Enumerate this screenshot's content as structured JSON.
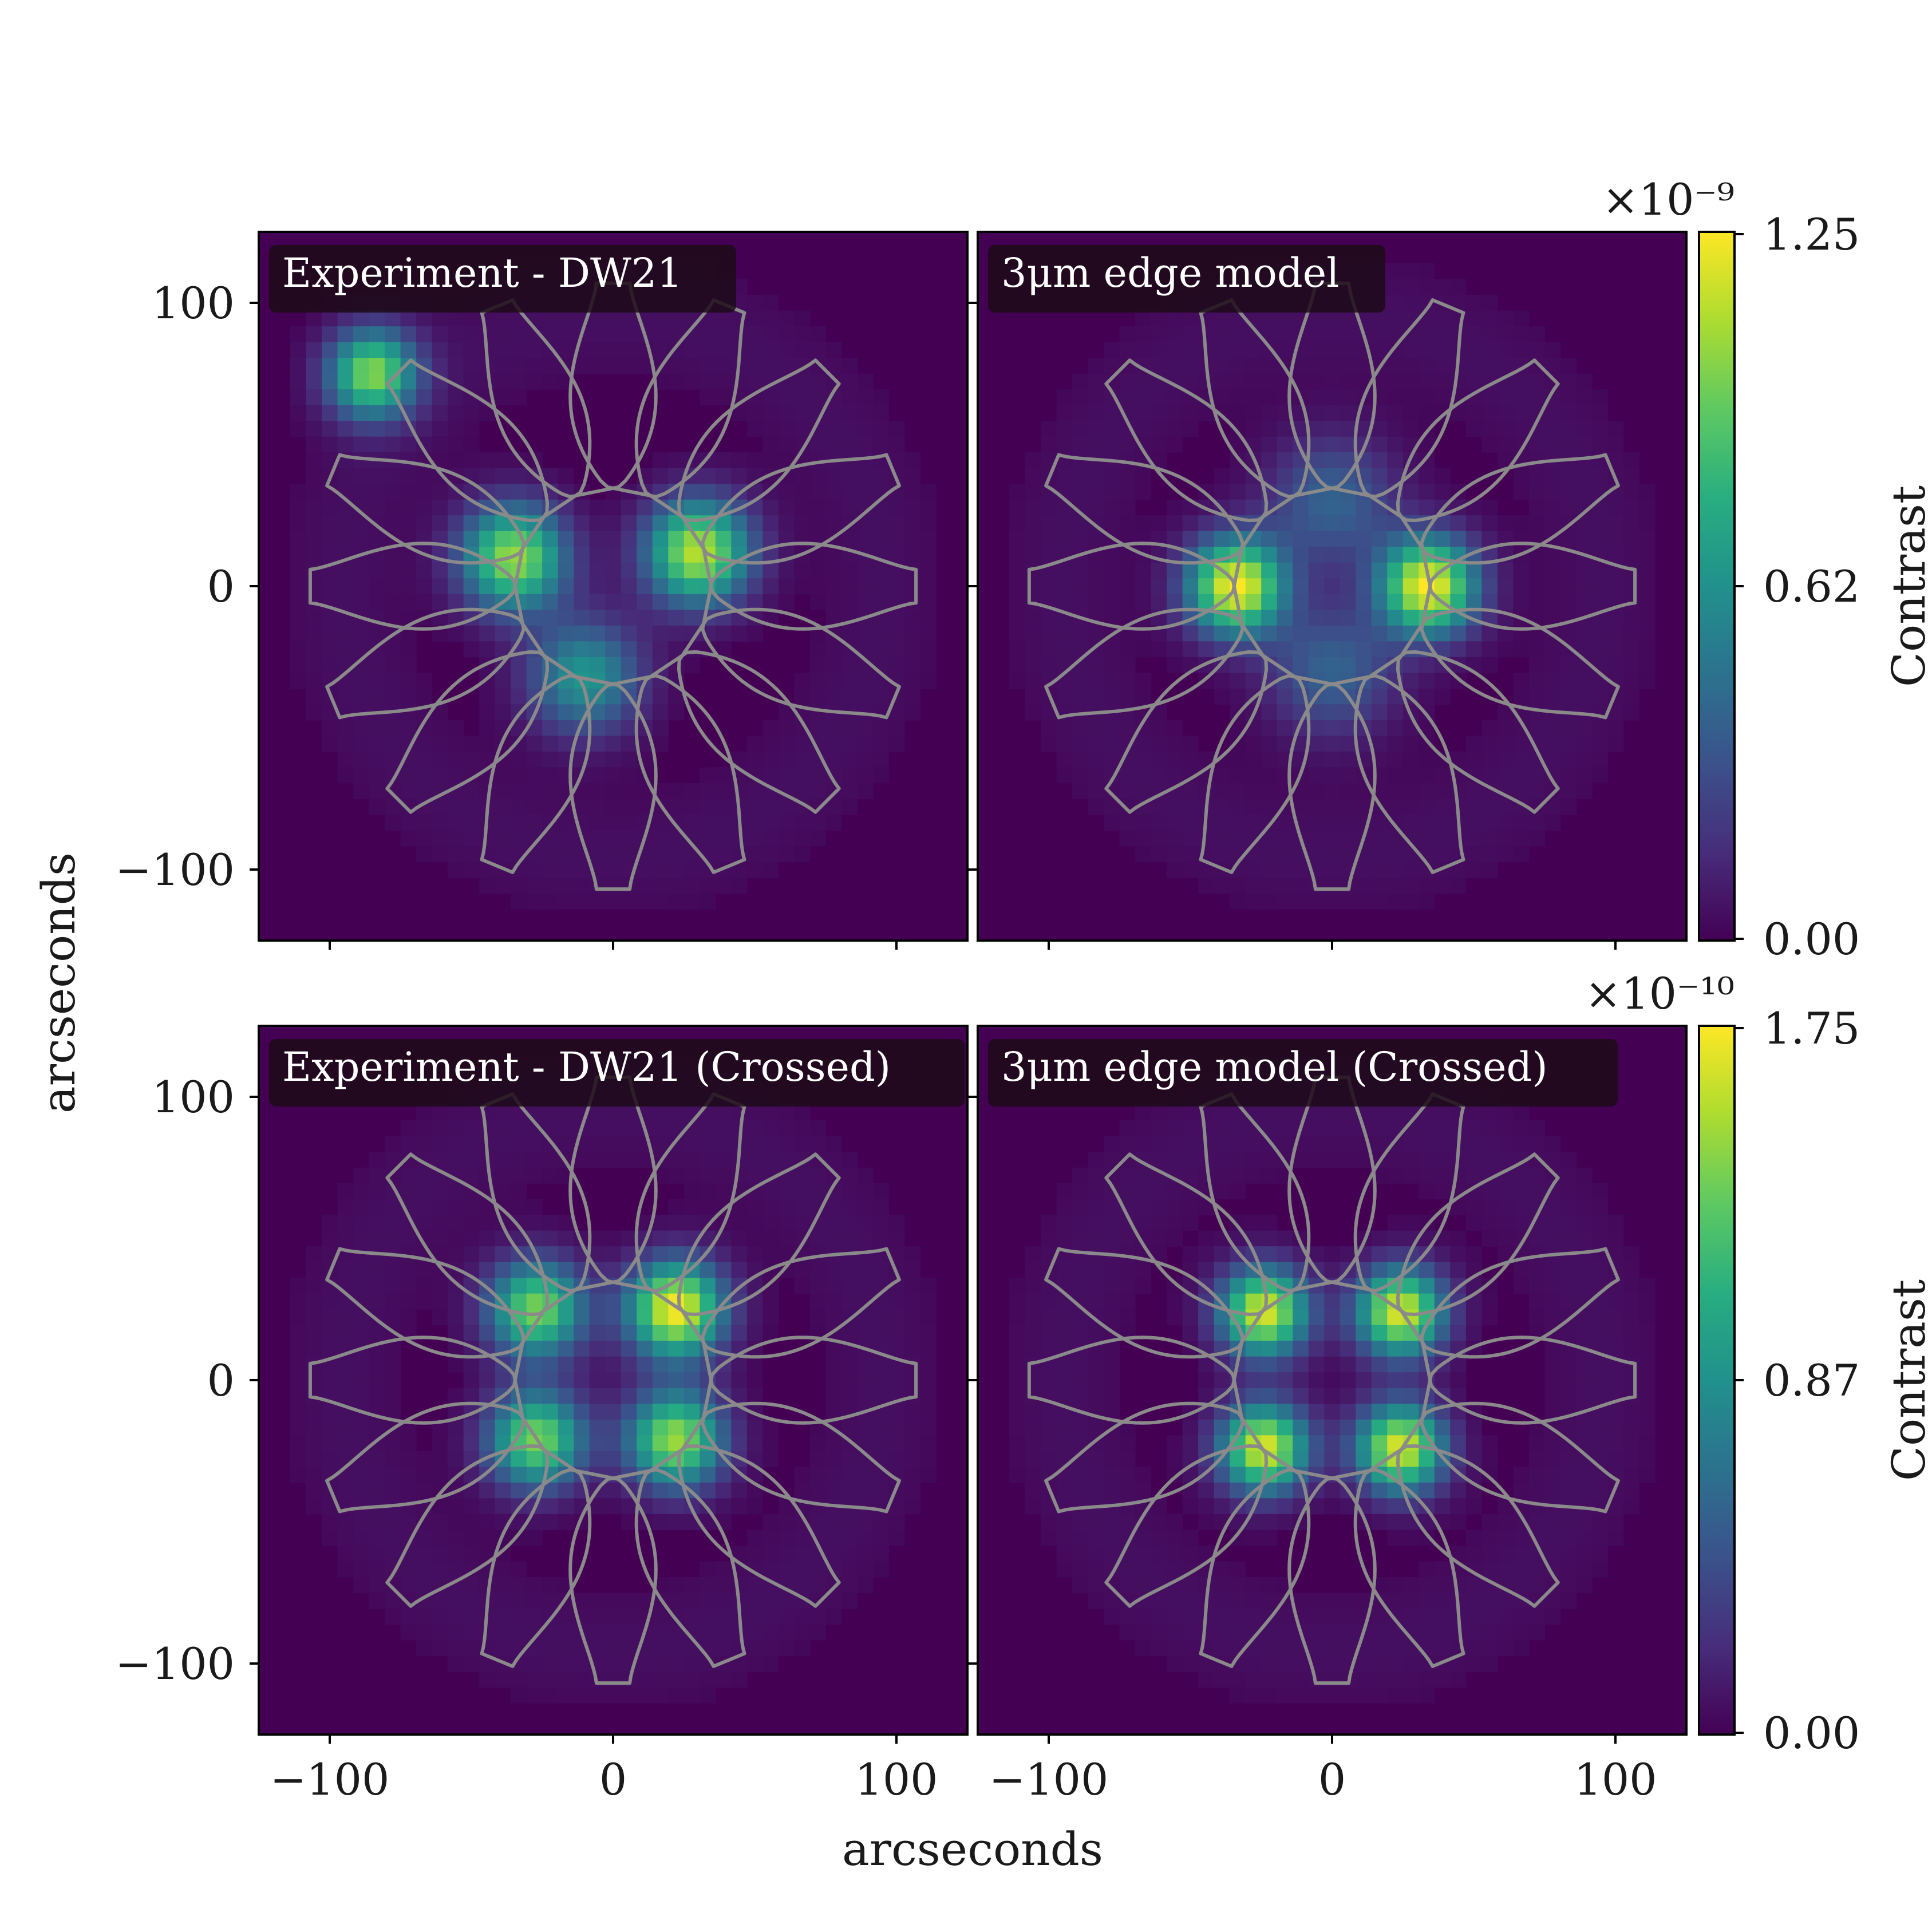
{
  "chart_data": [
    {
      "type": "heatmap",
      "title": "Experiment - DW21",
      "xlabel": "arcseconds",
      "ylabel": "arcseconds",
      "xlim": [
        -125,
        125
      ],
      "ylim": [
        -125,
        125
      ],
      "xticks": [
        "−100",
        "0",
        "100"
      ],
      "yticks": [
        "100",
        "0",
        "−100"
      ],
      "colorscale": "viridis",
      "spots": [
        {
          "x": -35,
          "y": 10,
          "value": 0.85,
          "sigma": 13
        },
        {
          "x": 30,
          "y": 12,
          "value": 0.9,
          "sigma": 13
        },
        {
          "x": -85,
          "y": 75,
          "value": 0.8,
          "sigma": 11
        },
        {
          "x": -10,
          "y": -32,
          "value": 0.52,
          "sigma": 14
        }
      ]
    },
    {
      "type": "heatmap",
      "title": "3μm edge model",
      "xlim": [
        -125,
        125
      ],
      "ylim": [
        -125,
        125
      ],
      "colorscale": "viridis",
      "colorbar": {
        "label": "Contrast",
        "multiplier": "×10⁻⁹",
        "ticks": [
          "1.25",
          "0.62",
          "0.00"
        ],
        "min": 0,
        "max": 1.25
      },
      "spots": [
        {
          "x": -34,
          "y": 0,
          "value": 1.0,
          "sigma": 12
        },
        {
          "x": 34,
          "y": 0,
          "value": 1.0,
          "sigma": 12
        },
        {
          "x": 0,
          "y": 30,
          "value": 0.32,
          "sigma": 16
        },
        {
          "x": 0,
          "y": -30,
          "value": 0.32,
          "sigma": 16
        }
      ]
    },
    {
      "type": "heatmap",
      "title": "Experiment - DW21 (Crossed)",
      "xlim": [
        -125,
        125
      ],
      "ylim": [
        -125,
        125
      ],
      "xticks": [
        "−100",
        "0",
        "100"
      ],
      "yticks": [
        "100",
        "0",
        "−100"
      ],
      "colorscale": "viridis",
      "spots": [
        {
          "x": -27,
          "y": 25,
          "value": 0.8,
          "sigma": 12
        },
        {
          "x": 22,
          "y": 25,
          "value": 1.0,
          "sigma": 12
        },
        {
          "x": -27,
          "y": -21,
          "value": 0.8,
          "sigma": 12
        },
        {
          "x": 22,
          "y": -21,
          "value": 0.85,
          "sigma": 12
        }
      ]
    },
    {
      "type": "heatmap",
      "title": "3μm edge model (Crossed)",
      "xlim": [
        -125,
        125
      ],
      "ylim": [
        -125,
        125
      ],
      "xticks": [
        "−100",
        "0",
        "100"
      ],
      "colorscale": "viridis",
      "colorbar": {
        "label": "Contrast",
        "multiplier": "×10⁻¹⁰",
        "ticks": [
          "1.75",
          "0.87",
          "0.00"
        ],
        "min": 0,
        "max": 1.75
      },
      "spots": [
        {
          "x": -24,
          "y": 24,
          "value": 0.95,
          "sigma": 11
        },
        {
          "x": 24,
          "y": 24,
          "value": 0.95,
          "sigma": 11
        },
        {
          "x": -24,
          "y": -24,
          "value": 0.95,
          "sigma": 11
        },
        {
          "x": 24,
          "y": -24,
          "value": 0.95,
          "sigma": 11
        }
      ]
    }
  ],
  "overlay": {
    "petals": 16,
    "inner_radius": 35,
    "outer_radius": 107,
    "color": "#8a8a8a"
  },
  "colors": {
    "axes_edge": "#000000",
    "background": "#ffffff",
    "title_box": "#1c0a18"
  }
}
